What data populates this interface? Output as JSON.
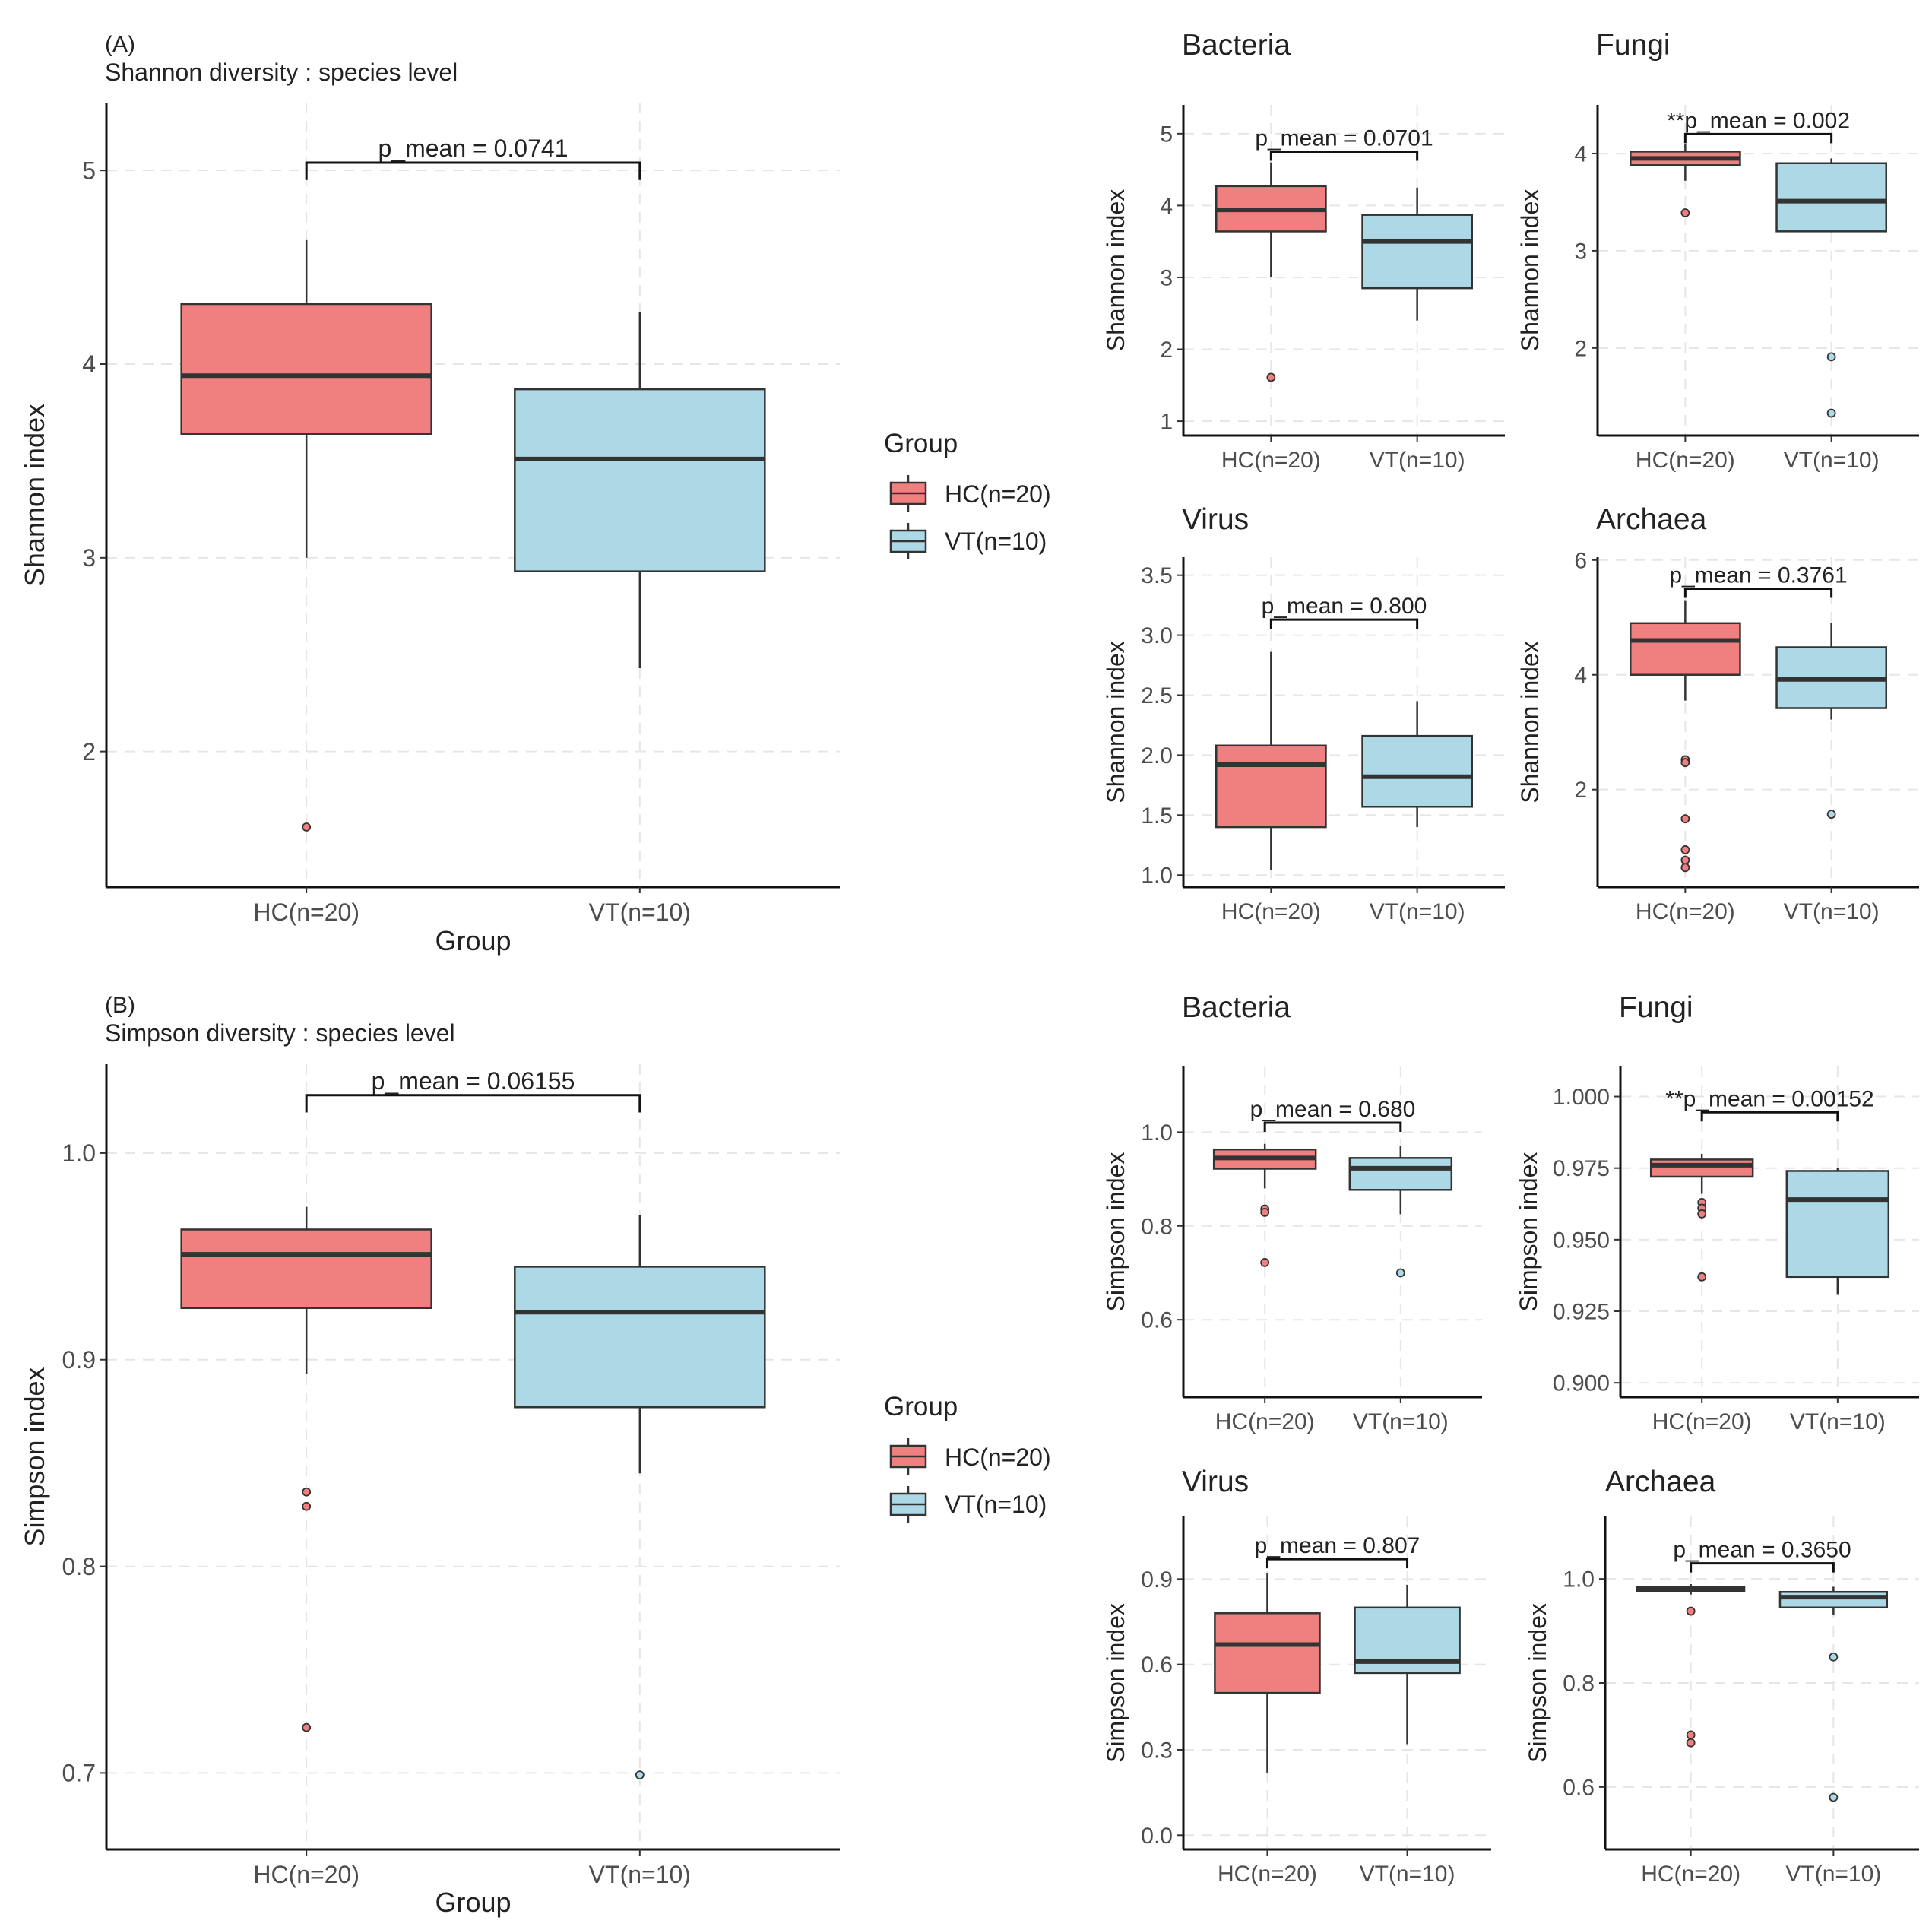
{
  "colors": {
    "HC": "#F08080",
    "VT": "#ADD8E6",
    "outline": "#333333",
    "grid": "#E6E6E6"
  },
  "legend": {
    "title": "Group",
    "items": [
      {
        "label": "HC(n=20)",
        "color": "#F08080"
      },
      {
        "label": "VT(n=10)",
        "color": "#ADD8E6"
      }
    ]
  },
  "chart_data": [
    {
      "id": "A",
      "type": "boxplot",
      "panel_tag": "(A)",
      "title": "Shannon diversity : species level",
      "ylabel": "Shannon index",
      "xlabel": "Group",
      "ylim": [
        1.3,
        5.35
      ],
      "yticks": [
        "2",
        "3",
        "4",
        "5"
      ],
      "categories": [
        "HC(n=20)",
        "VT(n=10)"
      ],
      "boxes": [
        {
          "group": "HC(n=20)",
          "lower_whisker": 3.0,
          "q1": 3.64,
          "median": 3.94,
          "q3": 4.31,
          "upper_whisker": 4.64,
          "outliers": [
            1.61
          ]
        },
        {
          "group": "VT(n=10)",
          "lower_whisker": 2.43,
          "q1": 2.93,
          "median": 3.51,
          "q3": 3.87,
          "upper_whisker": 4.27,
          "outliers": []
        }
      ],
      "annotation": {
        "text": "p_mean = 0.0741",
        "y": 5.04
      }
    },
    {
      "id": "A-bacteria",
      "type": "boxplot",
      "title": "Bacteria",
      "ylabel": "Shannon index",
      "ylim": [
        0.8,
        5.4
      ],
      "yticks": [
        "1",
        "2",
        "3",
        "4",
        "5"
      ],
      "categories": [
        "HC(n=20)",
        "VT(n=10)"
      ],
      "boxes": [
        {
          "group": "HC(n=20)",
          "lower_whisker": 3.0,
          "q1": 3.64,
          "median": 3.94,
          "q3": 4.27,
          "upper_whisker": 4.6,
          "outliers": [
            1.61
          ]
        },
        {
          "group": "VT(n=10)",
          "lower_whisker": 2.4,
          "q1": 2.85,
          "median": 3.5,
          "q3": 3.87,
          "upper_whisker": 4.25,
          "outliers": []
        }
      ],
      "annotation": {
        "text": "p_mean = 0.0701",
        "y": 4.75
      }
    },
    {
      "id": "A-fungi",
      "type": "boxplot",
      "title": "Fungi",
      "ylabel": "Shannon index",
      "ylim": [
        1.1,
        4.5
      ],
      "yticks": [
        "2",
        "3",
        "4"
      ],
      "categories": [
        "HC(n=20)",
        "VT(n=10)"
      ],
      "boxes": [
        {
          "group": "HC(n=20)",
          "lower_whisker": 3.72,
          "q1": 3.88,
          "median": 3.95,
          "q3": 4.02,
          "upper_whisker": 4.1,
          "outliers": [
            3.39
          ]
        },
        {
          "group": "VT(n=10)",
          "lower_whisker": 3.19,
          "q1": 3.2,
          "median": 3.51,
          "q3": 3.9,
          "upper_whisker": 3.95,
          "outliers": [
            1.91,
            1.33
          ]
        }
      ],
      "annotation": {
        "text": "**p_mean = 0.002",
        "y": 4.2
      }
    },
    {
      "id": "A-virus",
      "type": "boxplot",
      "title": "Virus",
      "ylabel": "Shannon index",
      "ylim": [
        0.9,
        3.65
      ],
      "yticks": [
        "1.0",
        "1.5",
        "2.0",
        "2.5",
        "3.0",
        "3.5"
      ],
      "categories": [
        "HC(n=20)",
        "VT(n=10)"
      ],
      "boxes": [
        {
          "group": "HC(n=20)",
          "lower_whisker": 1.04,
          "q1": 1.4,
          "median": 1.92,
          "q3": 2.08,
          "upper_whisker": 2.86,
          "outliers": []
        },
        {
          "group": "VT(n=10)",
          "lower_whisker": 1.4,
          "q1": 1.57,
          "median": 1.82,
          "q3": 2.16,
          "upper_whisker": 2.45,
          "outliers": []
        }
      ],
      "annotation": {
        "text": "p_mean = 0.800",
        "y": 3.13
      }
    },
    {
      "id": "A-archaea",
      "type": "boxplot",
      "title": "Archaea",
      "ylabel": "Shannon index",
      "ylim": [
        0.3,
        6.05
      ],
      "yticks": [
        "2",
        "4",
        "6"
      ],
      "categories": [
        "HC(n=20)",
        "VT(n=10)"
      ],
      "boxes": [
        {
          "group": "HC(n=20)",
          "lower_whisker": 3.55,
          "q1": 4.0,
          "median": 4.6,
          "q3": 4.9,
          "upper_whisker": 5.3,
          "outliers": [
            2.52,
            2.47,
            1.49,
            0.95,
            0.77,
            0.64
          ]
        },
        {
          "group": "VT(n=10)",
          "lower_whisker": 3.22,
          "q1": 3.42,
          "median": 3.92,
          "q3": 4.48,
          "upper_whisker": 4.9,
          "outliers": [
            1.57
          ]
        }
      ],
      "annotation": {
        "text": "p_mean = 0.3761",
        "y": 5.5
      }
    },
    {
      "id": "B",
      "type": "boxplot",
      "panel_tag": "(B)",
      "title": "Simpson diversity : species level",
      "ylabel": "Simpson index",
      "xlabel": "Group",
      "ylim": [
        0.663,
        1.043
      ],
      "yticks": [
        "0.7",
        "0.8",
        "0.9",
        "1.0"
      ],
      "categories": [
        "HC(n=20)",
        "VT(n=10)"
      ],
      "boxes": [
        {
          "group": "HC(n=20)",
          "lower_whisker": 0.893,
          "q1": 0.925,
          "median": 0.951,
          "q3": 0.963,
          "upper_whisker": 0.974,
          "outliers": [
            0.836,
            0.829,
            0.722
          ]
        },
        {
          "group": "VT(n=10)",
          "lower_whisker": 0.845,
          "q1": 0.877,
          "median": 0.923,
          "q3": 0.945,
          "upper_whisker": 0.97,
          "outliers": [
            0.699
          ]
        }
      ],
      "annotation": {
        "text": "p_mean = 0.06155",
        "y": 1.028
      }
    },
    {
      "id": "B-bacteria",
      "type": "boxplot",
      "title": "Bacteria",
      "ylabel": "Simpson index",
      "ylim": [
        0.435,
        1.14
      ],
      "yticks": [
        "0.6",
        "0.8",
        "1.0"
      ],
      "categories": [
        "HC(n=20)",
        "VT(n=10)"
      ],
      "boxes": [
        {
          "group": "HC(n=20)",
          "lower_whisker": 0.88,
          "q1": 0.922,
          "median": 0.945,
          "q3": 0.963,
          "upper_whisker": 0.975,
          "outliers": [
            0.836,
            0.829,
            0.722
          ]
        },
        {
          "group": "VT(n=10)",
          "lower_whisker": 0.825,
          "q1": 0.877,
          "median": 0.923,
          "q3": 0.945,
          "upper_whisker": 0.97,
          "outliers": [
            0.7
          ]
        }
      ],
      "annotation": {
        "text": "p_mean = 0.680",
        "y": 1.02
      }
    },
    {
      "id": "B-fungi",
      "type": "boxplot",
      "title": "Fungi",
      "ylabel": "Simpson index",
      "ylim": [
        0.895,
        1.0105
      ],
      "yticks": [
        "0.900",
        "0.925",
        "0.950",
        "0.975",
        "1.000"
      ],
      "categories": [
        "HC(n=20)",
        "VT(n=10)"
      ],
      "boxes": [
        {
          "group": "HC(n=20)",
          "lower_whisker": 0.966,
          "q1": 0.972,
          "median": 0.976,
          "q3": 0.978,
          "upper_whisker": 0.98,
          "outliers": [
            0.963,
            0.961,
            0.959,
            0.937
          ]
        },
        {
          "group": "VT(n=10)",
          "lower_whisker": 0.931,
          "q1": 0.937,
          "median": 0.964,
          "q3": 0.974,
          "upper_whisker": 0.975,
          "outliers": []
        }
      ],
      "annotation": {
        "text": "**p_mean = 0.00152",
        "y": 0.9945
      }
    },
    {
      "id": "B-virus",
      "type": "boxplot",
      "title": "Virus",
      "ylabel": "Simpson index",
      "ylim": [
        -0.05,
        1.12
      ],
      "yticks": [
        "0.0",
        "0.3",
        "0.6",
        "0.9"
      ],
      "categories": [
        "HC(n=20)",
        "VT(n=10)"
      ],
      "boxes": [
        {
          "group": "HC(n=20)",
          "lower_whisker": 0.22,
          "q1": 0.5,
          "median": 0.67,
          "q3": 0.78,
          "upper_whisker": 0.92,
          "outliers": []
        },
        {
          "group": "VT(n=10)",
          "lower_whisker": 0.32,
          "q1": 0.57,
          "median": 0.61,
          "q3": 0.8,
          "upper_whisker": 0.88,
          "outliers": []
        }
      ],
      "annotation": {
        "text": "p_mean = 0.807",
        "y": 0.97
      }
    },
    {
      "id": "B-archaea",
      "type": "boxplot",
      "title": "Archaea",
      "ylabel": "Simpson index",
      "ylim": [
        0.48,
        1.12
      ],
      "yticks": [
        "0.6",
        "0.8",
        "1.0"
      ],
      "categories": [
        "HC(n=20)",
        "VT(n=10)"
      ],
      "boxes": [
        {
          "group": "HC(n=20)",
          "lower_whisker": 0.97,
          "q1": 0.976,
          "median": 0.98,
          "q3": 0.985,
          "upper_whisker": 0.99,
          "outliers": [
            0.938,
            0.7,
            0.685
          ]
        },
        {
          "group": "VT(n=10)",
          "lower_whisker": 0.93,
          "q1": 0.945,
          "median": 0.965,
          "q3": 0.975,
          "upper_whisker": 0.985,
          "outliers": [
            0.85,
            0.58
          ]
        }
      ],
      "annotation": {
        "text": "p_mean = 0.3650",
        "y": 1.03
      }
    }
  ]
}
